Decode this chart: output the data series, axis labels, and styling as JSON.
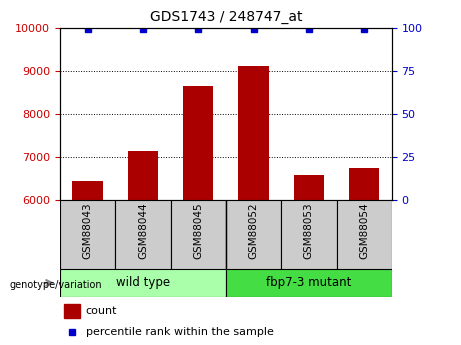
{
  "title": "GDS1743 / 248747_at",
  "samples": [
    "GSM88043",
    "GSM88044",
    "GSM88045",
    "GSM88052",
    "GSM88053",
    "GSM88054"
  ],
  "counts": [
    6450,
    7150,
    8650,
    9100,
    6580,
    6750
  ],
  "percentile_ranks": [
    99,
    99,
    99,
    99,
    99,
    99
  ],
  "ylim_left": [
    6000,
    10000
  ],
  "ylim_right": [
    0,
    100
  ],
  "yticks_left": [
    6000,
    7000,
    8000,
    9000,
    10000
  ],
  "yticks_right": [
    0,
    25,
    50,
    75,
    100
  ],
  "bar_color": "#AA0000",
  "dot_color": "#0000CC",
  "left_tick_color": "#CC0000",
  "right_tick_color": "#0000CC",
  "grid_color": "#000000",
  "group1_label": "wild type",
  "group2_label": "fbp7-3 mutant",
  "group1_color": "#AAFFAA",
  "group2_color": "#44DD44",
  "genotype_label": "genotype/variation",
  "legend_count_label": "count",
  "legend_pct_label": "percentile rank within the sample",
  "xlabel_area_color": "#CCCCCC",
  "bar_width": 0.55,
  "fig_width": 4.61,
  "fig_height": 3.45,
  "dpi": 100
}
